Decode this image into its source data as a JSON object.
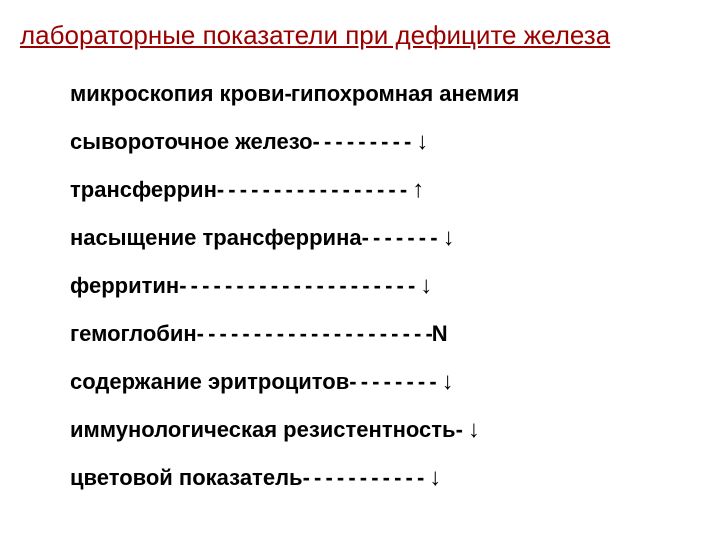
{
  "title": "лабораторные показатели при дефиците железа",
  "rows": [
    {
      "label": "микроскопия крови",
      "dashes": "   -    ",
      "result": "гипохромная анемия",
      "indicator": ""
    },
    {
      "label": "сывороточное железо",
      "dashes": "   - - - - - - - - -   ",
      "result": "",
      "indicator": "↓"
    },
    {
      "label": "трансферрин",
      "dashes": "   - - - - - - - - - - - - - - - - -   ",
      "result": "",
      "indicator": "↑"
    },
    {
      "label": "насыщение трансферрина",
      "dashes": "  - - - - - - -   ",
      "result": "",
      "indicator": "↓"
    },
    {
      "label": "ферритин",
      "dashes": " - - - - - - - - - - - - - - - - - - - - -   ",
      "result": "",
      "indicator": "↓"
    },
    {
      "label": "гемоглобин",
      "dashes": " - - - - - - - - - - - - - - - - - - - - -  ",
      "result": "N",
      "indicator": ""
    },
    {
      "label": "содержание эритроцитов",
      "dashes": "   - - - - - - - -   ",
      "result": "",
      "indicator": "↓"
    },
    {
      "label": "иммунологическая резистентность",
      "dashes": " -   ",
      "result": "",
      "indicator": "↓"
    },
    {
      "label": "цветовой показатель",
      "dashes": "  - - - - - - - - - - -   ",
      "result": "",
      "indicator": "↓"
    }
  ],
  "colors": {
    "title_color": "#990000",
    "text_color": "#000000",
    "background": "#ffffff"
  },
  "typography": {
    "title_fontsize": 26,
    "row_fontsize": 22,
    "font_family": "Arial"
  }
}
